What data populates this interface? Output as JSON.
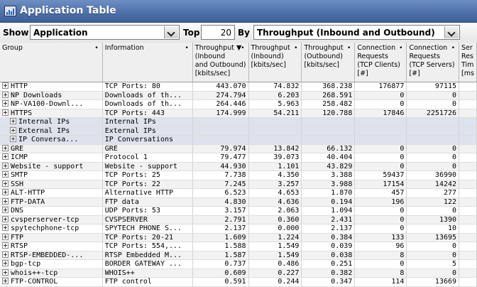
{
  "window": {
    "title": "Application Table"
  },
  "toolbar": {
    "show_label": "Show",
    "show_value": "Application",
    "top_label": "Top",
    "top_value": "20",
    "by_label": "By",
    "by_value": "Throughput (Inbound and Outbound)"
  },
  "table": {
    "headers": [
      {
        "lines": [
          "Group"
        ]
      },
      {
        "lines": [
          "Information"
        ]
      },
      {
        "lines": [
          "Throughput ▼",
          "(Inbound",
          "and Outbound)",
          "[kbits/sec]"
        ]
      },
      {
        "lines": [
          "Throughput",
          "(Inbound)",
          "[kbits/sec]"
        ]
      },
      {
        "lines": [
          "Throughput",
          "(Outbound)",
          "[kbits/sec]"
        ]
      },
      {
        "lines": [
          "Connection",
          "Requests",
          "(TCP Clients)",
          "[#]"
        ]
      },
      {
        "lines": [
          "Connection",
          "Requests",
          "(TCP Servers)",
          "[#]"
        ]
      },
      {
        "lines": [
          "Ser",
          "Res",
          "Tim",
          "[ms"
        ]
      }
    ],
    "rows": [
      {
        "group": "HTTP",
        "info": "TCP Ports: 80",
        "total": "443.070",
        "inbound": "74.832",
        "outbound": "368.238",
        "clients": "176877",
        "servers": "97115",
        "sub": false
      },
      {
        "group": "NP Downloads",
        "info": "Downloads of th...",
        "total": "274.794",
        "inbound": "6.203",
        "outbound": "268.591",
        "clients": "0",
        "servers": "0",
        "sub": false
      },
      {
        "group": "NP-VA100-Downl...",
        "info": "Downloads of th...",
        "total": "264.446",
        "inbound": "5.963",
        "outbound": "258.482",
        "clients": "0",
        "servers": "0",
        "sub": false
      },
      {
        "group": "HTTPS",
        "info": "TCP Ports: 443",
        "total": "174.999",
        "inbound": "54.211",
        "outbound": "120.788",
        "clients": "17846",
        "servers": "2251726",
        "sub": false
      },
      {
        "group": "Internal IPs",
        "info": "Internal IPs",
        "total": "",
        "inbound": "",
        "outbound": "",
        "clients": "",
        "servers": "",
        "sub": true
      },
      {
        "group": "External IPs",
        "info": "External IPs",
        "total": "",
        "inbound": "",
        "outbound": "",
        "clients": "",
        "servers": "",
        "sub": true
      },
      {
        "group": "IP Conversa...",
        "info": "IP Conversations",
        "total": "",
        "inbound": "",
        "outbound": "",
        "clients": "",
        "servers": "",
        "sub": true
      },
      {
        "group": "GRE",
        "info": "GRE",
        "total": "79.974",
        "inbound": "13.842",
        "outbound": "66.132",
        "clients": "0",
        "servers": "0",
        "sub": false
      },
      {
        "group": "ICMP",
        "info": "Protocol 1",
        "total": "79.477",
        "inbound": "39.073",
        "outbound": "40.404",
        "clients": "0",
        "servers": "0",
        "sub": false
      },
      {
        "group": "Website - support",
        "info": "Website - support",
        "total": "44.930",
        "inbound": "1.101",
        "outbound": "43.829",
        "clients": "0",
        "servers": "0",
        "sub": false
      },
      {
        "group": "SMTP",
        "info": "TCP Ports: 25",
        "total": "7.738",
        "inbound": "4.350",
        "outbound": "3.388",
        "clients": "59437",
        "servers": "36990",
        "sub": false
      },
      {
        "group": "SSH",
        "info": "TCP Ports: 22",
        "total": "7.245",
        "inbound": "3.257",
        "outbound": "3.988",
        "clients": "17154",
        "servers": "14242",
        "sub": false
      },
      {
        "group": "ALT-HTTP",
        "info": "Alternative HTTP",
        "total": "6.523",
        "inbound": "4.653",
        "outbound": "1.870",
        "clients": "457",
        "servers": "277",
        "sub": false
      },
      {
        "group": "FTP-DATA",
        "info": "FTP data",
        "total": "4.830",
        "inbound": "4.636",
        "outbound": "0.194",
        "clients": "196",
        "servers": "122",
        "sub": false
      },
      {
        "group": "DNS",
        "info": "UDP Ports: 53",
        "total": "3.157",
        "inbound": "2.063",
        "outbound": "1.094",
        "clients": "0",
        "servers": "0",
        "sub": false
      },
      {
        "group": "cvsperserver-tcp",
        "info": "CVSPSERVER",
        "total": "2.791",
        "inbound": "0.360",
        "outbound": "2.431",
        "clients": "0",
        "servers": "1390",
        "sub": false
      },
      {
        "group": "spytechphone-tcp",
        "info": "SPYTECH PHONE S...",
        "total": "2.137",
        "inbound": "0.000",
        "outbound": "2.137",
        "clients": "0",
        "servers": "10",
        "sub": false
      },
      {
        "group": "FTP",
        "info": "TCP Ports: 20-21",
        "total": "1.609",
        "inbound": "1.224",
        "outbound": "0.384",
        "clients": "133",
        "servers": "13695",
        "sub": false
      },
      {
        "group": "RTSP",
        "info": "TCP Ports: 554,...",
        "total": "1.588",
        "inbound": "1.549",
        "outbound": "0.039",
        "clients": "96",
        "servers": "0",
        "sub": false
      },
      {
        "group": "RTSP-EMBEDDED-...",
        "info": "RTSP Embedded M...",
        "total": "1.587",
        "inbound": "1.549",
        "outbound": "0.038",
        "clients": "8",
        "servers": "0",
        "sub": false
      },
      {
        "group": "bgp-tcp",
        "info": "BORDER GATEWAY ...",
        "total": "0.737",
        "inbound": "0.486",
        "outbound": "0.251",
        "clients": "0",
        "servers": "5",
        "sub": false
      },
      {
        "group": "whois++-tcp",
        "info": "WHOIS++",
        "total": "0.609",
        "inbound": "0.227",
        "outbound": "0.382",
        "clients": "8",
        "servers": "0",
        "sub": false
      },
      {
        "group": "FTP-CONTROL",
        "info": "FTP control",
        "total": "0.591",
        "inbound": "0.244",
        "outbound": "0.347",
        "clients": "114",
        "servers": "13669",
        "sub": false
      }
    ]
  }
}
